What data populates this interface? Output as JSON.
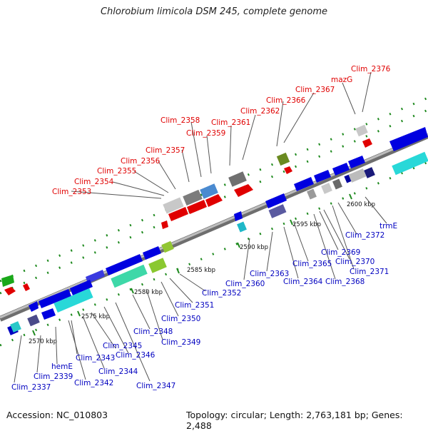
{
  "title": "Chlorobium limicola DSM 245, complete genome",
  "footer": {
    "accession": "Accession: NC_010803",
    "summary": "Topology: circular; Length: 2,763,181 bp; Genes: 2,488"
  },
  "scale_labels": [
    "2570 kbp",
    "2575 kbp",
    "2580 kbp",
    "2585 kbp",
    "2590 kbp",
    "2595 kbp",
    "2600 kbp"
  ],
  "top_labels": [
    "Clim_2353",
    "Clim_2354",
    "Clim_2355",
    "Clim_2356",
    "Clim_2357",
    "Clim_2358",
    "Clim_2359",
    "Clim_2361",
    "Clim_2362",
    "Clim_2366",
    "Clim_2367",
    "mazG",
    "Clim_2376"
  ],
  "bottom_labels": [
    "Clim_2337",
    "Clim_2339",
    "hemE",
    "Clim_2342",
    "Clim_2343",
    "Clim_2344",
    "Clim_2345",
    "Clim_2346",
    "Clim_2347",
    "Clim_2348",
    "Clim_2349",
    "Clim_2350",
    "Clim_2351",
    "Clim_2352",
    "Clim_2360",
    "Clim_2363",
    "Clim_2364",
    "Clim_2365",
    "Clim_2368",
    "Clim_2369",
    "Clim_2370",
    "Clim_2371",
    "Clim_2372",
    "trmE"
  ],
  "colors": {
    "forward_label": "#e00000",
    "reverse_label": "#0000c0",
    "forward_gene": "#e00000",
    "reverse_gene": "#0a0ae0",
    "backbone": "#9a9a9a",
    "tick": "#1f8a1f"
  }
}
